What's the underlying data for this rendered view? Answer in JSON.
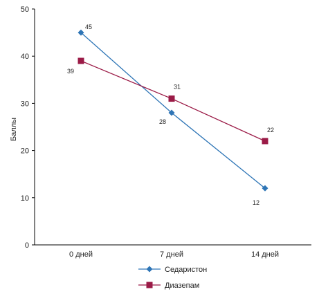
{
  "chart_data": {
    "type": "line",
    "title": "",
    "xlabel": "",
    "ylabel": "Баллы",
    "categories": [
      "0 дней",
      "7 дней",
      "14 дней"
    ],
    "ylim": [
      0,
      50
    ],
    "yticks": [
      0,
      10,
      20,
      30,
      40,
      50
    ],
    "grid": false,
    "legend_position": "bottom",
    "series": [
      {
        "name": "Седаристон",
        "values": [
          45,
          28,
          12
        ],
        "color": "#2e75b6",
        "marker": "diamond",
        "data_labels": [
          "45",
          "28",
          "12"
        ]
      },
      {
        "name": "Диазепам",
        "values": [
          39,
          31,
          22
        ],
        "color": "#9b1b47",
        "marker": "square",
        "data_labels": [
          "39",
          "31",
          "22"
        ]
      }
    ]
  }
}
